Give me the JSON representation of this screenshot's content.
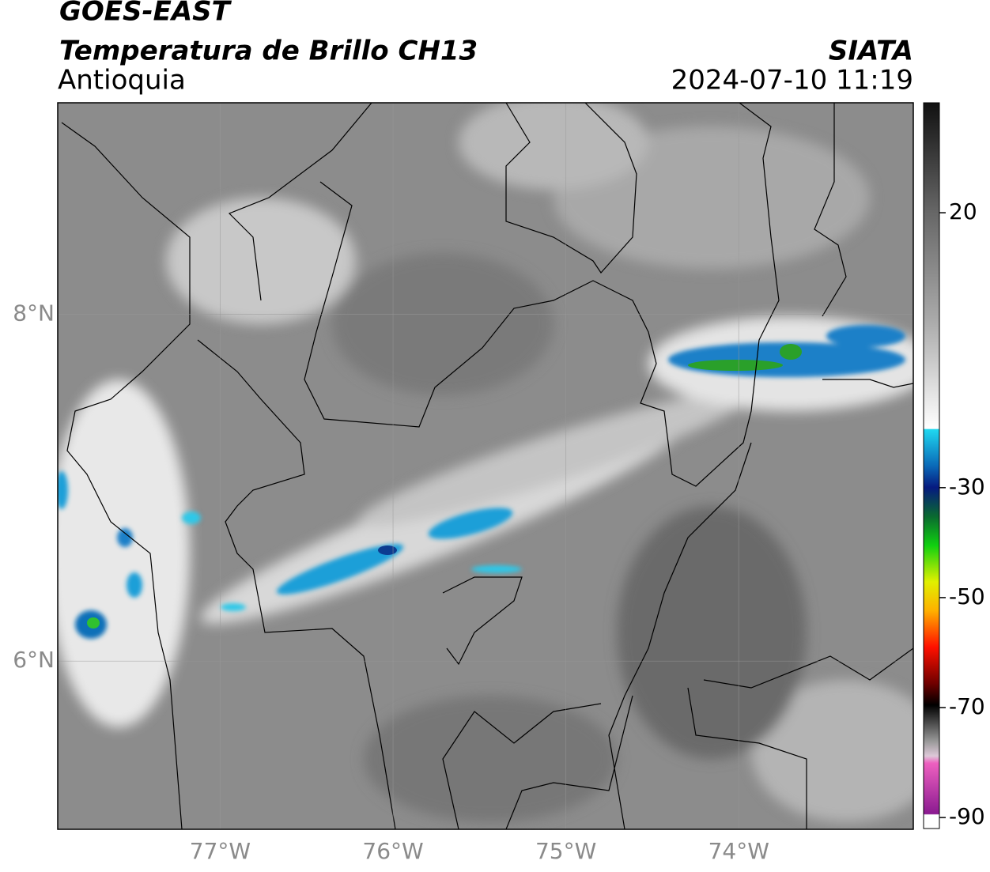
{
  "header": {
    "title": "GOES-EAST",
    "subtitle": "Temperatura de Brillo CH13",
    "region": "Antioquia",
    "source": "SIATA",
    "datetime": "2024-07-10 11:19"
  },
  "map": {
    "lonlim": [
      -77.94,
      -72.99
    ],
    "latlim": [
      5.03,
      9.22
    ],
    "lon_ticks": [
      {
        "value": -77,
        "label": "77°W"
      },
      {
        "value": -76,
        "label": "76°W"
      },
      {
        "value": -75,
        "label": "75°W"
      },
      {
        "value": -74,
        "label": "74°W"
      }
    ],
    "lat_ticks": [
      {
        "value": 8,
        "label": "8°N"
      },
      {
        "value": 6,
        "label": "6°N"
      }
    ]
  },
  "colorbar": {
    "lim": [
      -92,
      40
    ],
    "ticks": [
      20,
      -30,
      -50,
      -70,
      -90
    ]
  }
}
